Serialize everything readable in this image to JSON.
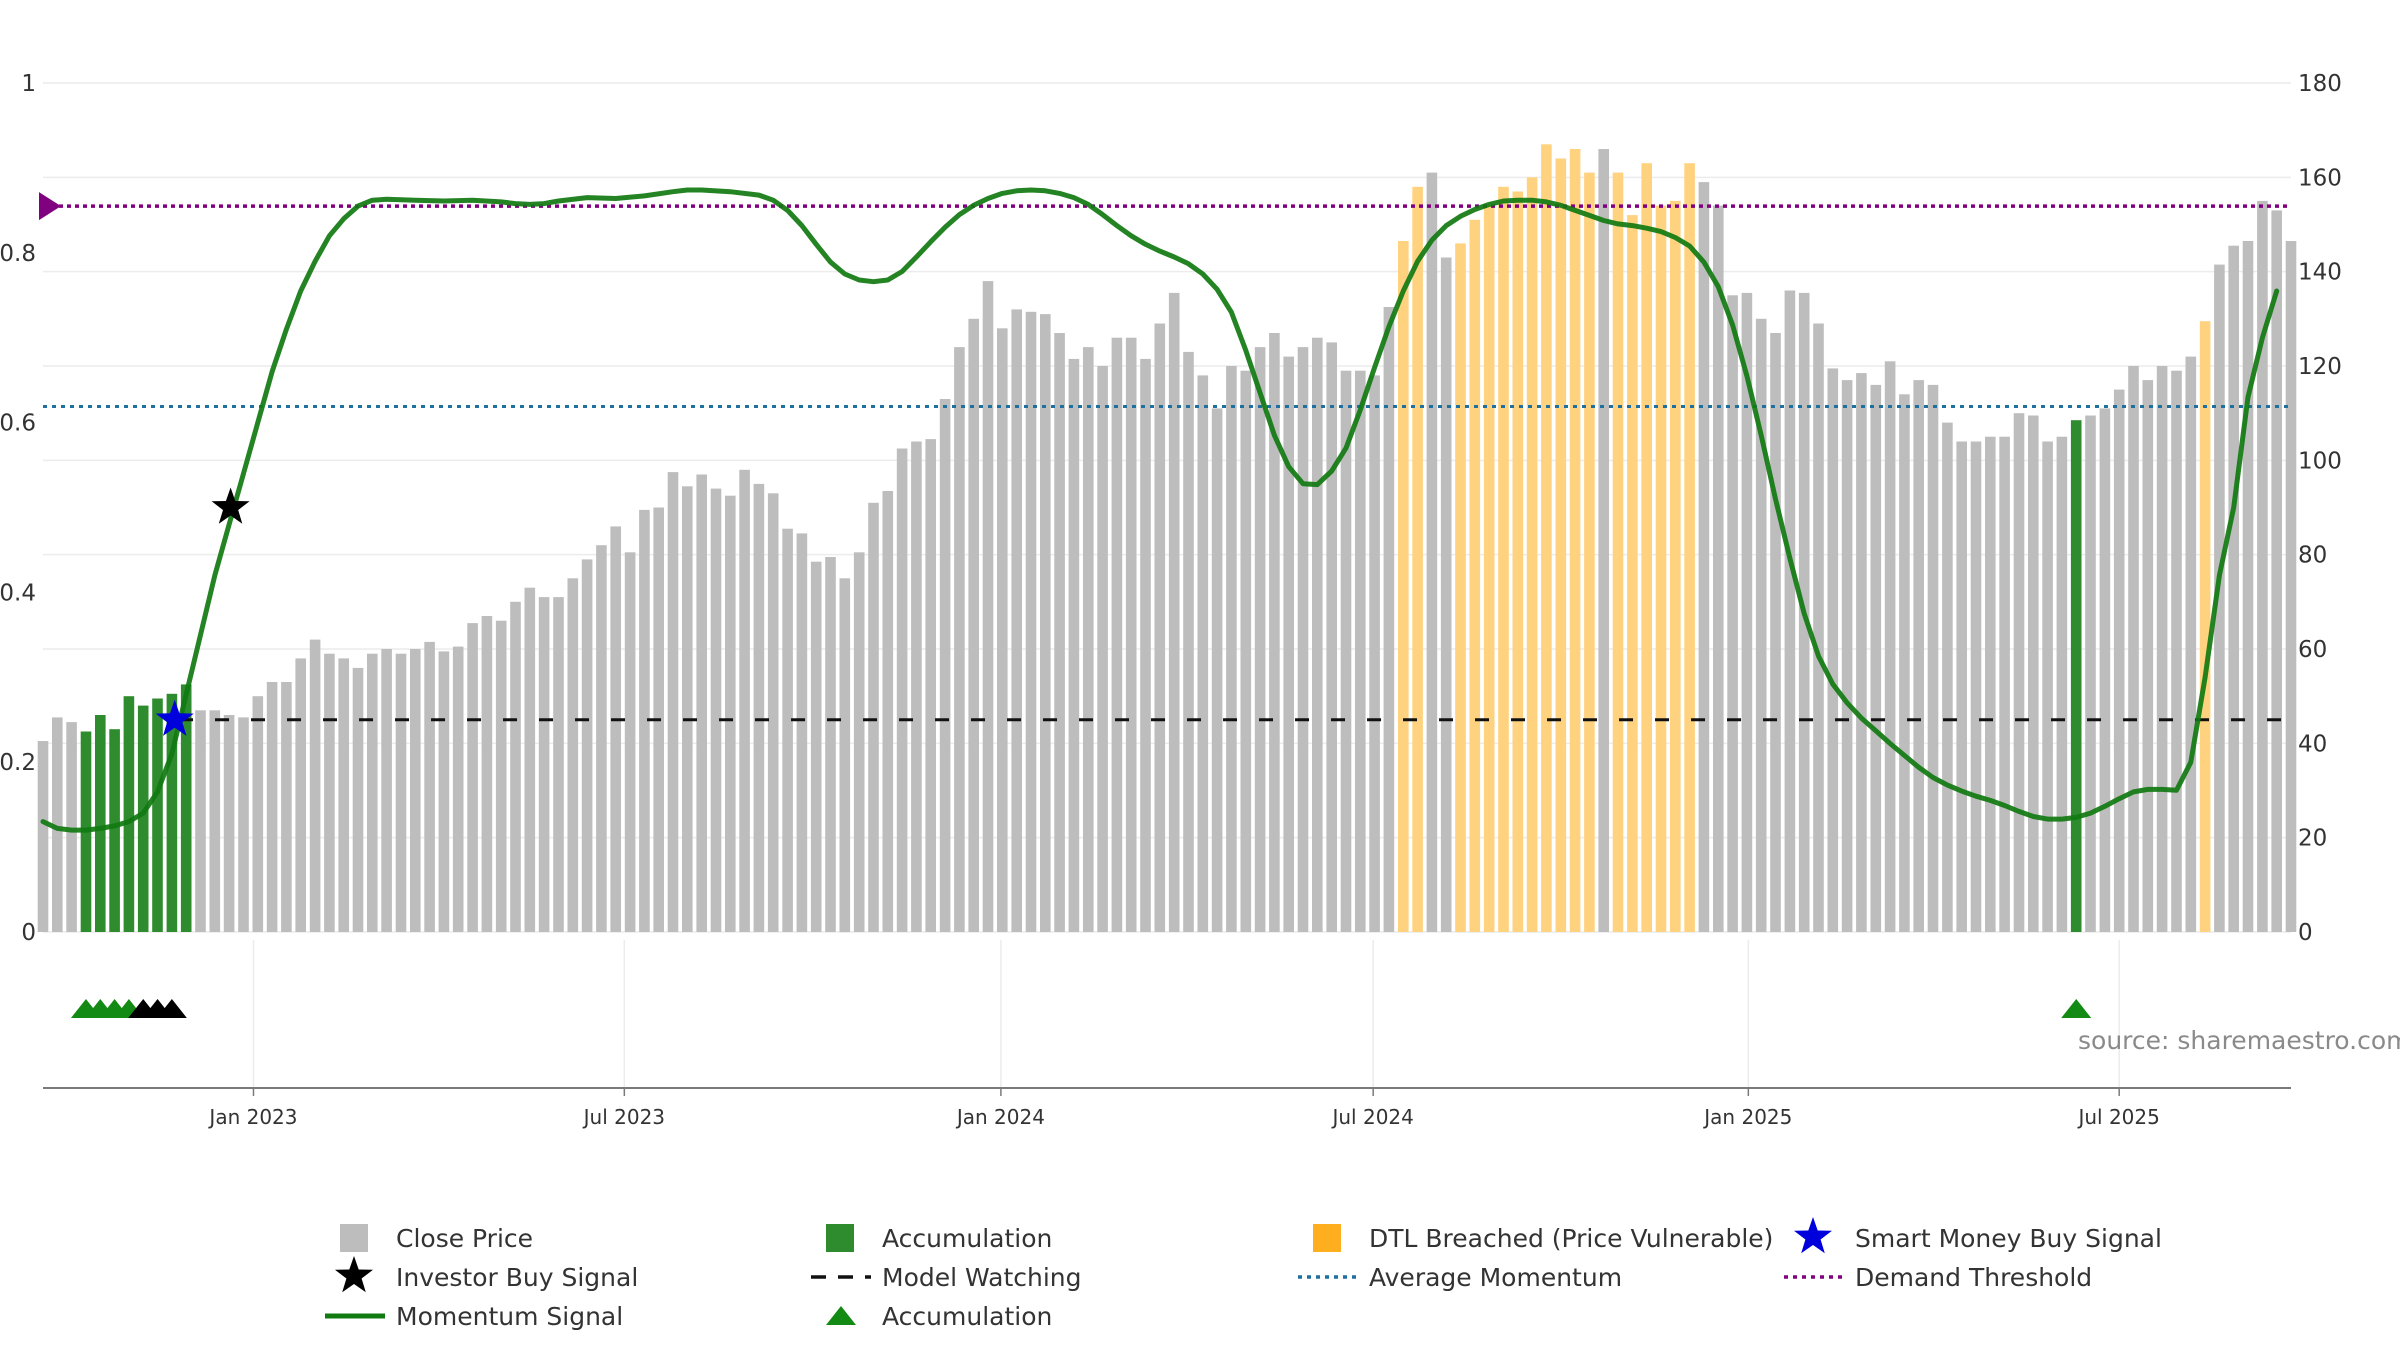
{
  "chart_data": {
    "type": "bar",
    "title": "",
    "colors": {
      "close": "#bdbdbd",
      "accumulation": "#2e8b2e",
      "dtl": "#ffd27f",
      "momentum": "#117a11",
      "model_watching": "#111111",
      "average_momentum": "#1f6f9f",
      "demand_threshold": "#800080",
      "smart_star": "#0000dd",
      "investor_star": "#000000",
      "triangle_green": "#138a13",
      "triangle_black": "#000000"
    },
    "left_axis": {
      "range": [
        0,
        1
      ],
      "ticks": [
        "0",
        "0.2",
        "0.4",
        "0.6",
        "0.8",
        "1"
      ]
    },
    "right_axis": {
      "range": [
        0,
        180
      ],
      "ticks": [
        "0",
        "20",
        "40",
        "60",
        "80",
        "100",
        "120",
        "140",
        "160",
        "180"
      ]
    },
    "x_axis": {
      "labels": [
        "Jan 2023",
        "Jul 2023",
        "Jan 2024",
        "Jul 2024",
        "Jan 2025",
        "Jul 2025"
      ],
      "label_weeks": [
        14.7,
        40.6,
        66.9,
        92.9,
        119.1,
        145
      ]
    },
    "close_prices": [
      40.5,
      45.5,
      44.5,
      42.5,
      46,
      43,
      50,
      48,
      49.5,
      50.5,
      52.5,
      47,
      47,
      46,
      45.5,
      50,
      53,
      53,
      58,
      62,
      59,
      58,
      56,
      59,
      60,
      59,
      60,
      61.5,
      59.5,
      60.5,
      65.5,
      67,
      66,
      70,
      73,
      71,
      71,
      75,
      79,
      82,
      86,
      80.5,
      89.5,
      90,
      97.5,
      94.5,
      97,
      94,
      92.5,
      98,
      95,
      93,
      85.5,
      84.5,
      78.5,
      79.5,
      75,
      80.5,
      91,
      93.5,
      102.5,
      104,
      104.5,
      113,
      124,
      130,
      138,
      128,
      132,
      131.5,
      131,
      127,
      121.5,
      124,
      120,
      126,
      126,
      121.5,
      129,
      135.5,
      123,
      118,
      111,
      120,
      119,
      124,
      127,
      122,
      124,
      126,
      125,
      119,
      119,
      118,
      132.5,
      146.5,
      158,
      161,
      143,
      146,
      151,
      154,
      158,
      157,
      160,
      167,
      164,
      166,
      161,
      166,
      161,
      152,
      163,
      154,
      155,
      163,
      159,
      154,
      135,
      135.5,
      130,
      127,
      136,
      135.5,
      129,
      119.5,
      117,
      118.5,
      116,
      121,
      114,
      117,
      116,
      108,
      104,
      104,
      105,
      105,
      110,
      109.5,
      104,
      105,
      108.5,
      109.5,
      111,
      115,
      120,
      117,
      120,
      119,
      122,
      129.5,
      141.5,
      145.5,
      146.5,
      155,
      153,
      146.5
    ],
    "accumulation_weeks": [
      3,
      4,
      5,
      6,
      7,
      8,
      9,
      10,
      142
    ],
    "dtl_weeks": [
      95,
      96,
      99,
      100,
      101,
      102,
      103,
      104,
      105,
      106,
      107,
      108,
      110,
      111,
      112,
      113,
      114,
      115,
      151
    ],
    "momentum": [
      [
        0,
        0.13
      ],
      [
        1,
        0.122
      ],
      [
        2,
        0.12
      ],
      [
        3,
        0.12
      ],
      [
        4,
        0.122
      ],
      [
        5,
        0.125
      ],
      [
        6,
        0.13
      ],
      [
        7,
        0.14
      ],
      [
        8,
        0.165
      ],
      [
        9,
        0.21
      ],
      [
        10,
        0.28
      ],
      [
        11,
        0.35
      ],
      [
        12,
        0.42
      ],
      [
        13,
        0.48
      ],
      [
        14,
        0.54
      ],
      [
        15,
        0.6
      ],
      [
        16,
        0.66
      ],
      [
        17,
        0.71
      ],
      [
        18,
        0.755
      ],
      [
        19,
        0.79
      ],
      [
        20,
        0.82
      ],
      [
        21,
        0.84
      ],
      [
        22,
        0.855
      ],
      [
        23,
        0.862
      ],
      [
        24,
        0.863
      ],
      [
        26,
        0.862
      ],
      [
        28,
        0.861
      ],
      [
        30,
        0.862
      ],
      [
        32,
        0.86
      ],
      [
        33,
        0.858
      ],
      [
        34,
        0.857
      ],
      [
        35,
        0.858
      ],
      [
        36,
        0.861
      ],
      [
        38,
        0.865
      ],
      [
        40,
        0.864
      ],
      [
        42,
        0.867
      ],
      [
        44,
        0.872
      ],
      [
        45,
        0.874
      ],
      [
        46,
        0.874
      ],
      [
        48,
        0.872
      ],
      [
        50,
        0.868
      ],
      [
        51,
        0.862
      ],
      [
        52,
        0.85
      ],
      [
        53,
        0.832
      ],
      [
        54,
        0.81
      ],
      [
        55,
        0.789
      ],
      [
        56,
        0.775
      ],
      [
        57,
        0.768
      ],
      [
        58,
        0.766
      ],
      [
        59,
        0.768
      ],
      [
        60,
        0.778
      ],
      [
        61,
        0.795
      ],
      [
        62,
        0.813
      ],
      [
        63,
        0.83
      ],
      [
        64,
        0.845
      ],
      [
        65,
        0.856
      ],
      [
        66,
        0.864
      ],
      [
        67,
        0.87
      ],
      [
        68,
        0.873
      ],
      [
        69,
        0.874
      ],
      [
        70,
        0.873
      ],
      [
        71,
        0.87
      ],
      [
        72,
        0.865
      ],
      [
        73,
        0.857
      ],
      [
        74,
        0.845
      ],
      [
        75,
        0.832
      ],
      [
        76,
        0.82
      ],
      [
        77,
        0.81
      ],
      [
        78,
        0.802
      ],
      [
        79,
        0.795
      ],
      [
        80,
        0.787
      ],
      [
        81,
        0.775
      ],
      [
        82,
        0.757
      ],
      [
        83,
        0.73
      ],
      [
        84,
        0.685
      ],
      [
        85,
        0.635
      ],
      [
        86,
        0.585
      ],
      [
        87,
        0.548
      ],
      [
        88,
        0.528
      ],
      [
        89,
        0.527
      ],
      [
        90,
        0.543
      ],
      [
        91,
        0.57
      ],
      [
        92,
        0.615
      ],
      [
        93,
        0.665
      ],
      [
        94,
        0.713
      ],
      [
        95,
        0.755
      ],
      [
        96,
        0.79
      ],
      [
        97,
        0.815
      ],
      [
        98,
        0.832
      ],
      [
        99,
        0.843
      ],
      [
        100,
        0.851
      ],
      [
        101,
        0.857
      ],
      [
        102,
        0.861
      ],
      [
        103,
        0.862
      ],
      [
        104,
        0.862
      ],
      [
        105,
        0.86
      ],
      [
        106,
        0.856
      ],
      [
        107,
        0.85
      ],
      [
        108,
        0.844
      ],
      [
        109,
        0.838
      ],
      [
        110,
        0.834
      ],
      [
        111,
        0.832
      ],
      [
        112,
        0.829
      ],
      [
        113,
        0.825
      ],
      [
        114,
        0.818
      ],
      [
        115,
        0.808
      ],
      [
        116,
        0.789
      ],
      [
        117,
        0.76
      ],
      [
        118,
        0.715
      ],
      [
        119,
        0.655
      ],
      [
        120,
        0.585
      ],
      [
        121,
        0.51
      ],
      [
        122,
        0.44
      ],
      [
        123,
        0.375
      ],
      [
        124,
        0.325
      ],
      [
        125,
        0.292
      ],
      [
        126,
        0.27
      ],
      [
        127,
        0.252
      ],
      [
        128,
        0.237
      ],
      [
        129,
        0.222
      ],
      [
        130,
        0.208
      ],
      [
        131,
        0.194
      ],
      [
        132,
        0.182
      ],
      [
        133,
        0.173
      ],
      [
        134,
        0.166
      ],
      [
        135,
        0.16
      ],
      [
        136,
        0.155
      ],
      [
        137,
        0.149
      ],
      [
        138,
        0.142
      ],
      [
        139,
        0.136
      ],
      [
        140,
        0.133
      ],
      [
        141,
        0.133
      ],
      [
        142,
        0.135
      ],
      [
        143,
        0.14
      ],
      [
        144,
        0.148
      ],
      [
        145,
        0.157
      ],
      [
        146,
        0.165
      ],
      [
        147,
        0.168
      ],
      [
        148,
        0.168
      ],
      [
        149,
        0.167
      ],
      [
        150,
        0.2
      ],
      [
        151,
        0.3
      ],
      [
        152,
        0.42
      ],
      [
        153,
        0.5
      ],
      [
        154,
        0.63
      ],
      [
        155,
        0.7
      ],
      [
        156,
        0.755
      ]
    ],
    "average_momentum": 0.619,
    "model_watching": 0.25,
    "demand_threshold": 0.855,
    "smart_money_buy_signal": {
      "week": 9.2,
      "value": 0.25
    },
    "investor_buy_signal": {
      "week": 13.1,
      "value": 0.5
    },
    "accumulation_triangles": [
      {
        "week": 3,
        "color": "green"
      },
      {
        "week": 4,
        "color": "green"
      },
      {
        "week": 5,
        "color": "green"
      },
      {
        "week": 6,
        "color": "green"
      },
      {
        "week": 7,
        "color": "black"
      },
      {
        "week": 8,
        "color": "black"
      },
      {
        "week": 9,
        "color": "black"
      },
      {
        "week": 142,
        "color": "green"
      }
    ],
    "source": "source: sharemaestro.com",
    "legend": [
      {
        "label": "Close Price",
        "kind": "square",
        "color": "#bdbdbd"
      },
      {
        "label": "Accumulation",
        "kind": "square",
        "color": "#2e8b2e"
      },
      {
        "label": "DTL Breached (Price Vulnerable)",
        "kind": "square",
        "color": "#ffae1f"
      },
      {
        "label": "Smart Money Buy Signal",
        "kind": "star",
        "color": "#0000dd"
      },
      {
        "label": "Investor Buy Signal",
        "kind": "star",
        "color": "#000000"
      },
      {
        "label": "Model Watching",
        "kind": "dash",
        "color": "#111111"
      },
      {
        "label": "Average Momentum",
        "kind": "dot",
        "color": "#1f6f9f"
      },
      {
        "label": "Demand Threshold",
        "kind": "dot",
        "color": "#800080"
      },
      {
        "label": "Momentum Signal",
        "kind": "line",
        "color": "#117a11"
      },
      {
        "label": "Accumulation",
        "kind": "triangle",
        "color": "#138a13"
      }
    ]
  }
}
